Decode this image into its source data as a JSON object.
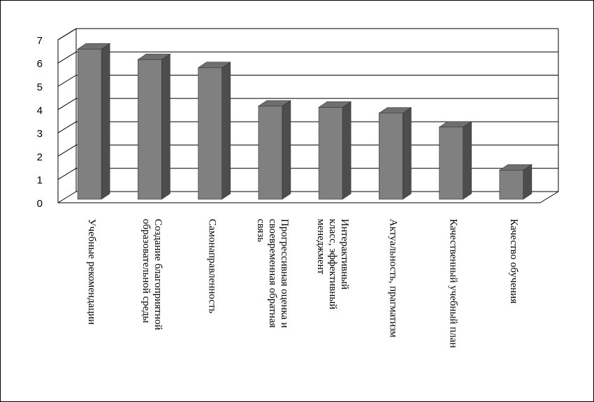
{
  "chart_data": {
    "type": "bar",
    "style": "3d-column",
    "categories": [
      [
        "Учебные рекомендации"
      ],
      [
        "Создание благоприятной",
        "образовательной среды"
      ],
      [
        "Самонаправленность"
      ],
      [
        "Прогрессивная оценка и",
        "своевременная обратная",
        "связь"
      ],
      [
        "Интерактивный",
        "класс, эффективный",
        "менеджмент"
      ],
      [
        "Актуальность, прагматизм"
      ],
      [
        "Качественный учебный план"
      ],
      [
        "Качество обучения"
      ]
    ],
    "values": [
      6.6,
      6.15,
      5.8,
      4.15,
      4.1,
      3.85,
      3.25,
      1.4
    ],
    "ylim": [
      0,
      7
    ],
    "yticks": [
      "0",
      "1",
      "2",
      "3",
      "4",
      "5",
      "6",
      "7"
    ],
    "grid": true,
    "legend": "none",
    "colors": {
      "front": "#808080",
      "side": "#4d4d4d",
      "top": "#6f6f6f",
      "grid": "#000000"
    }
  }
}
